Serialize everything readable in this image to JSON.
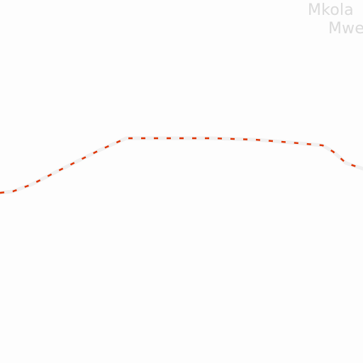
{
  "map": {
    "background_color": "#fdfdfd",
    "place_label": {
      "line1": "Mkola",
      "line2": "Mwe"
    },
    "road": {
      "casing_color": "#f0f0f0",
      "dash_color_a": "#e03200",
      "dash_color_b": "#ffb400"
    }
  }
}
